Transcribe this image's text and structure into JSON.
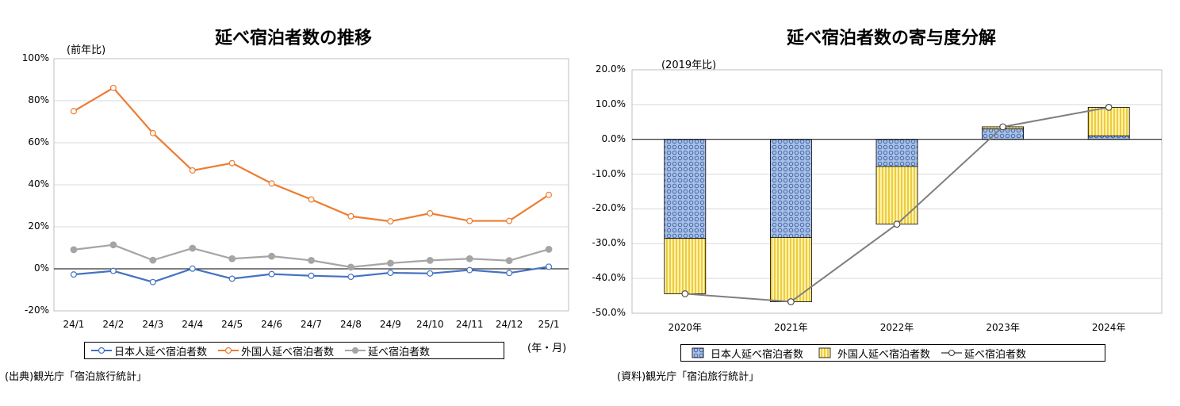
{
  "chart_data": [
    {
      "type": "line",
      "title": "延べ宿泊者数の推移",
      "ylabel": "(前年比)",
      "xlabel": "(年・月)",
      "ylim": [
        -20,
        100
      ],
      "yticks": [
        -20,
        0,
        20,
        40,
        60,
        80,
        100
      ],
      "ytick_labels": [
        "-20%",
        "0%",
        "20%",
        "40%",
        "60%",
        "80%",
        "100%"
      ],
      "grid": true,
      "legend_position": "bottom",
      "categories": [
        "24/1",
        "24/2",
        "24/3",
        "24/4",
        "24/5",
        "24/6",
        "24/7",
        "24/8",
        "24/9",
        "24/10",
        "24/11",
        "24/12",
        "25/1"
      ],
      "series": [
        {
          "name": "日本人延べ宿泊者数",
          "color": "#4472c4",
          "values": [
            -2.7,
            -1.0,
            -6.3,
            0.1,
            -4.7,
            -2.5,
            -3.3,
            -3.8,
            -1.9,
            -2.2,
            -0.6,
            -2.0,
            1.0
          ]
        },
        {
          "name": "外国人延べ宿泊者数",
          "color": "#ed7d31",
          "values": [
            75.0,
            86.1,
            64.6,
            46.8,
            50.3,
            40.6,
            33.0,
            25.0,
            22.6,
            26.4,
            22.8,
            22.8,
            35.2
          ]
        },
        {
          "name": "延べ宿泊者数",
          "color": "#a5a5a5",
          "values": [
            9.1,
            11.4,
            4.1,
            9.8,
            4.8,
            6.0,
            4.0,
            0.8,
            2.7,
            4.0,
            4.8,
            3.9,
            9.3
          ]
        }
      ],
      "source": "(出典)観光庁「宿泊旅行統計」"
    },
    {
      "type": "bar",
      "stacked": true,
      "title": "延べ宿泊者数の寄与度分解",
      "ylabel": "(2019年比)",
      "ylim": [
        -50,
        20
      ],
      "yticks": [
        -50,
        -40,
        -30,
        -20,
        -10,
        0,
        10,
        20
      ],
      "ytick_labels": [
        "-50.0%",
        "-40.0%",
        "-30.0%",
        "-20.0%",
        "-10.0%",
        "0.0%",
        "10.0%",
        "20.0%"
      ],
      "grid": true,
      "legend_position": "bottom",
      "categories": [
        "2020年",
        "2021年",
        "2022年",
        "2023年",
        "2024年"
      ],
      "series": [
        {
          "name": "日本人延べ宿泊者数",
          "kind": "bar",
          "color": "#8eaadb",
          "values": [
            -28.5,
            -28.2,
            -7.8,
            3.0,
            1.0
          ]
        },
        {
          "name": "外国人延べ宿泊者数",
          "kind": "bar",
          "color": "#ffd966",
          "values": [
            -15.9,
            -18.5,
            -16.6,
            0.6,
            8.2
          ]
        },
        {
          "name": "延べ宿泊者数",
          "kind": "line",
          "color": "#7f7f7f",
          "values": [
            -44.4,
            -46.7,
            -24.4,
            3.6,
            9.2
          ]
        }
      ],
      "source": "(資料)観光庁「宿泊旅行統計」"
    }
  ]
}
